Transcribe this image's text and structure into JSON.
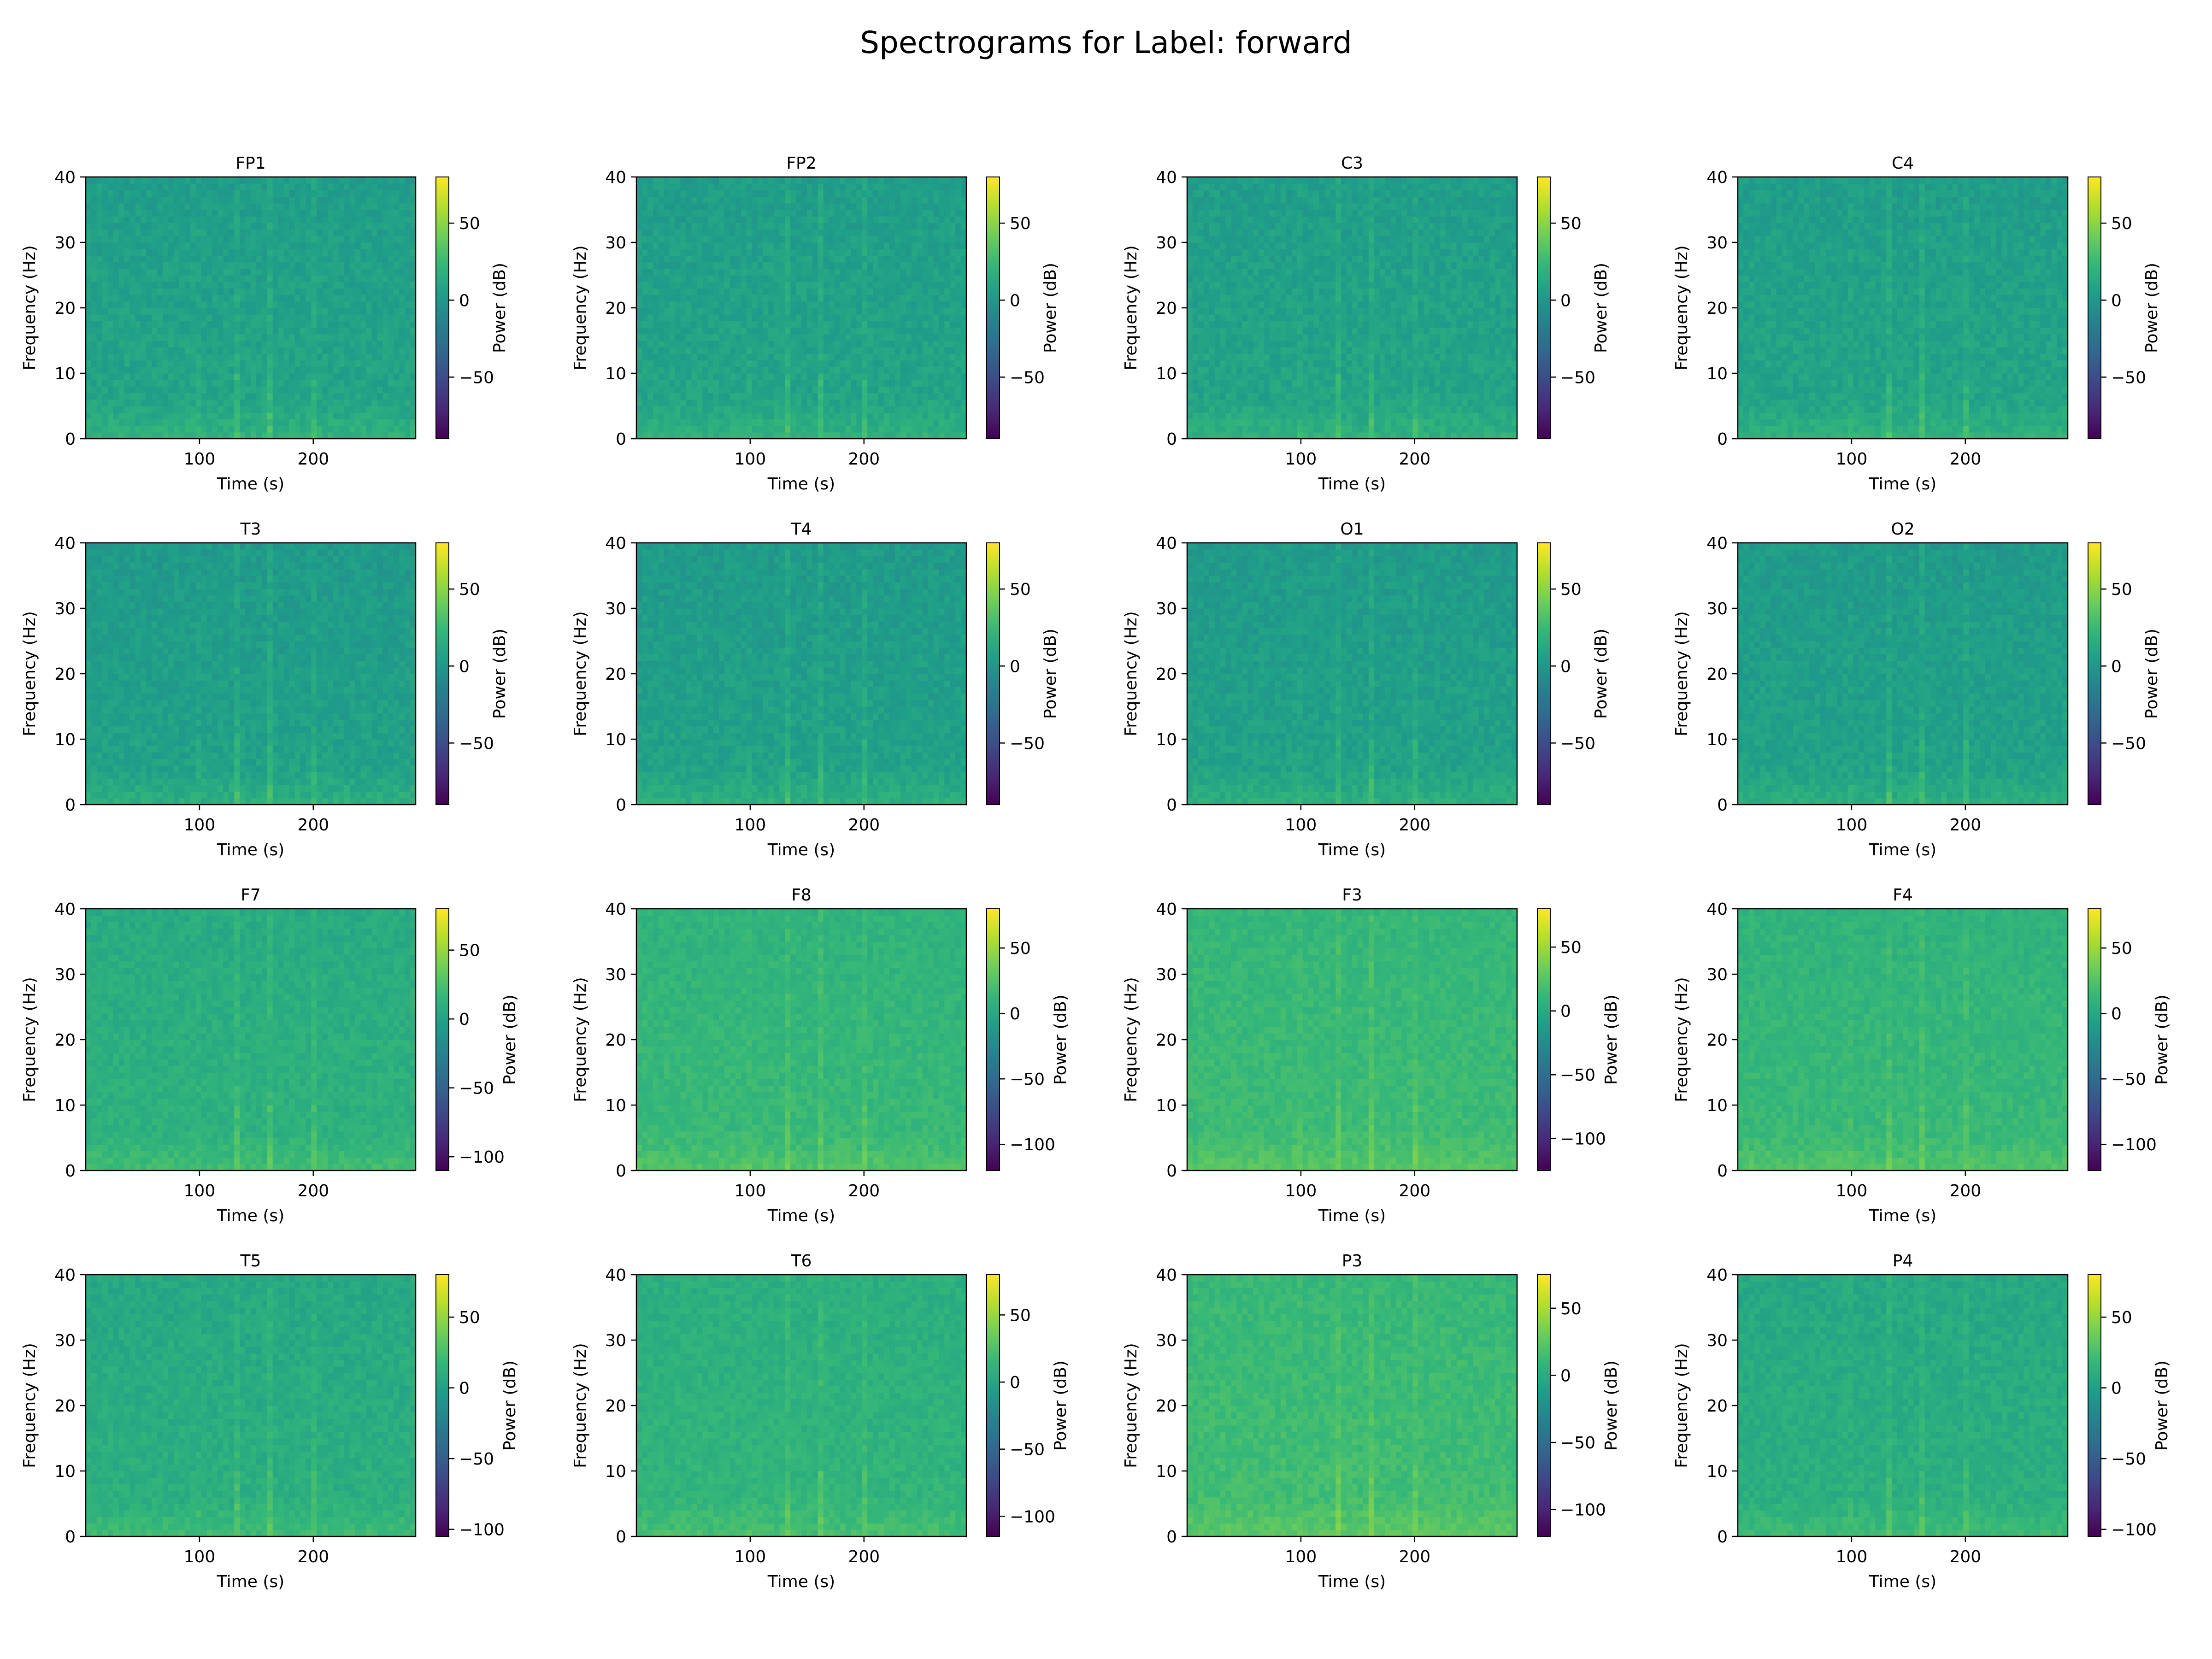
{
  "figure": {
    "title": "Spectrograms for Label: forward"
  },
  "colormap": {
    "name": "viridis",
    "stops": [
      "#440154",
      "#482878",
      "#3e4989",
      "#31688e",
      "#26828e",
      "#1f9e89",
      "#35b779",
      "#6ece58",
      "#b5de2b",
      "#fde725"
    ]
  },
  "chart_data": [
    {
      "type": "heatmap",
      "title": "FP1",
      "xlabel": "Time (s)",
      "ylabel": "Frequency (Hz)",
      "xticks": [
        100,
        200
      ],
      "xlim": [
        0,
        290
      ],
      "yticks": [
        0,
        10,
        20,
        30,
        40
      ],
      "ylim": [
        0,
        40
      ],
      "colorbar": {
        "label": "Power (dB)",
        "ticks": [
          -50,
          0,
          50
        ],
        "range": [
          -90,
          80
        ]
      },
      "base_level_db": 10,
      "vertical_streaks_s": [
        97,
        133,
        163,
        200
      ]
    },
    {
      "type": "heatmap",
      "title": "FP2",
      "xlabel": "Time (s)",
      "ylabel": "Frequency (Hz)",
      "xticks": [
        100,
        200
      ],
      "xlim": [
        0,
        290
      ],
      "yticks": [
        0,
        10,
        20,
        30,
        40
      ],
      "ylim": [
        0,
        40
      ],
      "colorbar": {
        "label": "Power (dB)",
        "ticks": [
          -50,
          0,
          50
        ],
        "range": [
          -90,
          80
        ]
      },
      "base_level_db": 10,
      "vertical_streaks_s": [
        97,
        133,
        163,
        200
      ]
    },
    {
      "type": "heatmap",
      "title": "C3",
      "xlabel": "Time (s)",
      "ylabel": "Frequency (Hz)",
      "xticks": [
        100,
        200
      ],
      "xlim": [
        0,
        290
      ],
      "yticks": [
        0,
        10,
        20,
        30,
        40
      ],
      "ylim": [
        0,
        40
      ],
      "colorbar": {
        "label": "Power (dB)",
        "ticks": [
          -50,
          0,
          50
        ],
        "range": [
          -90,
          80
        ]
      },
      "base_level_db": 10,
      "vertical_streaks_s": [
        97,
        133,
        163,
        200
      ]
    },
    {
      "type": "heatmap",
      "title": "C4",
      "xlabel": "Time (s)",
      "ylabel": "Frequency (Hz)",
      "xticks": [
        100,
        200
      ],
      "xlim": [
        0,
        290
      ],
      "yticks": [
        0,
        10,
        20,
        30,
        40
      ],
      "ylim": [
        0,
        40
      ],
      "colorbar": {
        "label": "Power (dB)",
        "ticks": [
          -50,
          0,
          50
        ],
        "range": [
          -90,
          80
        ]
      },
      "base_level_db": 10,
      "vertical_streaks_s": [
        97,
        133,
        163,
        200
      ]
    },
    {
      "type": "heatmap",
      "title": "T3",
      "xlabel": "Time (s)",
      "ylabel": "Frequency (Hz)",
      "xticks": [
        100,
        200
      ],
      "xlim": [
        0,
        290
      ],
      "yticks": [
        0,
        10,
        20,
        30,
        40
      ],
      "ylim": [
        0,
        40
      ],
      "colorbar": {
        "label": "Power (dB)",
        "ticks": [
          -50,
          0,
          50
        ],
        "range": [
          -90,
          80
        ]
      },
      "base_level_db": 8,
      "vertical_streaks_s": [
        97,
        133,
        163,
        200
      ]
    },
    {
      "type": "heatmap",
      "title": "T4",
      "xlabel": "Time (s)",
      "ylabel": "Frequency (Hz)",
      "xticks": [
        100,
        200
      ],
      "xlim": [
        0,
        290
      ],
      "yticks": [
        0,
        10,
        20,
        30,
        40
      ],
      "ylim": [
        0,
        40
      ],
      "colorbar": {
        "label": "Power (dB)",
        "ticks": [
          -50,
          0,
          50
        ],
        "range": [
          -90,
          80
        ]
      },
      "base_level_db": 8,
      "vertical_streaks_s": [
        97,
        133,
        163,
        200
      ]
    },
    {
      "type": "heatmap",
      "title": "O1",
      "xlabel": "Time (s)",
      "ylabel": "Frequency (Hz)",
      "xticks": [
        100,
        200
      ],
      "xlim": [
        0,
        290
      ],
      "yticks": [
        0,
        10,
        20,
        30,
        40
      ],
      "ylim": [
        0,
        40
      ],
      "colorbar": {
        "label": "Power (dB)",
        "ticks": [
          -50,
          0,
          50
        ],
        "range": [
          -90,
          80
        ]
      },
      "base_level_db": 8,
      "vertical_streaks_s": [
        97,
        133,
        163,
        200
      ]
    },
    {
      "type": "heatmap",
      "title": "O2",
      "xlabel": "Time (s)",
      "ylabel": "Frequency (Hz)",
      "xticks": [
        100,
        200
      ],
      "xlim": [
        0,
        290
      ],
      "yticks": [
        0,
        10,
        20,
        30,
        40
      ],
      "ylim": [
        0,
        40
      ],
      "colorbar": {
        "label": "Power (dB)",
        "ticks": [
          -50,
          0,
          50
        ],
        "range": [
          -90,
          80
        ]
      },
      "base_level_db": 8,
      "vertical_streaks_s": [
        97,
        133,
        163,
        200
      ]
    },
    {
      "type": "heatmap",
      "title": "F7",
      "xlabel": "Time (s)",
      "ylabel": "Frequency (Hz)",
      "xticks": [
        100,
        200
      ],
      "xlim": [
        0,
        290
      ],
      "yticks": [
        0,
        10,
        20,
        30,
        40
      ],
      "ylim": [
        0,
        40
      ],
      "colorbar": {
        "label": "Power (dB)",
        "ticks": [
          -100,
          -50,
          0,
          50
        ],
        "range": [
          -110,
          80
        ]
      },
      "base_level_db": 12,
      "vertical_streaks_s": [
        97,
        133,
        163,
        200
      ]
    },
    {
      "type": "heatmap",
      "title": "F8",
      "xlabel": "Time (s)",
      "ylabel": "Frequency (Hz)",
      "xticks": [
        100,
        200
      ],
      "xlim": [
        0,
        290
      ],
      "yticks": [
        0,
        10,
        20,
        30,
        40
      ],
      "ylim": [
        0,
        40
      ],
      "colorbar": {
        "label": "Power (dB)",
        "ticks": [
          -100,
          -50,
          0,
          50
        ],
        "range": [
          -120,
          80
        ]
      },
      "base_level_db": 15,
      "vertical_streaks_s": [
        97,
        133,
        163,
        200
      ]
    },
    {
      "type": "heatmap",
      "title": "F3",
      "xlabel": "Time (s)",
      "ylabel": "Frequency (Hz)",
      "xticks": [
        100,
        200
      ],
      "xlim": [
        0,
        290
      ],
      "yticks": [
        0,
        10,
        20,
        30,
        40
      ],
      "ylim": [
        0,
        40
      ],
      "colorbar": {
        "label": "Power (dB)",
        "ticks": [
          -100,
          -50,
          0,
          50
        ],
        "range": [
          -125,
          80
        ]
      },
      "base_level_db": 16,
      "vertical_streaks_s": [
        97,
        133,
        163,
        200
      ]
    },
    {
      "type": "heatmap",
      "title": "F4",
      "xlabel": "Time (s)",
      "ylabel": "Frequency (Hz)",
      "xticks": [
        100,
        200
      ],
      "xlim": [
        0,
        290
      ],
      "yticks": [
        0,
        10,
        20,
        30,
        40
      ],
      "ylim": [
        0,
        40
      ],
      "colorbar": {
        "label": "Power (dB)",
        "ticks": [
          -100,
          -50,
          0,
          50
        ],
        "range": [
          -120,
          80
        ]
      },
      "base_level_db": 15,
      "vertical_streaks_s": [
        97,
        133,
        163,
        200
      ]
    },
    {
      "type": "heatmap",
      "title": "T5",
      "xlabel": "Time (s)",
      "ylabel": "Frequency (Hz)",
      "xticks": [
        100,
        200
      ],
      "xlim": [
        0,
        290
      ],
      "yticks": [
        0,
        10,
        20,
        30,
        40
      ],
      "ylim": [
        0,
        40
      ],
      "colorbar": {
        "label": "Power (dB)",
        "ticks": [
          -100,
          -50,
          0,
          50
        ],
        "range": [
          -105,
          80
        ]
      },
      "base_level_db": 12,
      "vertical_streaks_s": [
        97,
        133,
        163,
        200
      ]
    },
    {
      "type": "heatmap",
      "title": "T6",
      "xlabel": "Time (s)",
      "ylabel": "Frequency (Hz)",
      "xticks": [
        100,
        200
      ],
      "xlim": [
        0,
        290
      ],
      "yticks": [
        0,
        10,
        20,
        30,
        40
      ],
      "ylim": [
        0,
        40
      ],
      "colorbar": {
        "label": "Power (dB)",
        "ticks": [
          -100,
          -50,
          0,
          50
        ],
        "range": [
          -115,
          80
        ]
      },
      "base_level_db": 13,
      "vertical_streaks_s": [
        97,
        133,
        163,
        200
      ]
    },
    {
      "type": "heatmap",
      "title": "P3",
      "xlabel": "Time (s)",
      "ylabel": "Frequency (Hz)",
      "xticks": [
        100,
        200
      ],
      "xlim": [
        0,
        290
      ],
      "yticks": [
        0,
        10,
        20,
        30,
        40
      ],
      "ylim": [
        0,
        40
      ],
      "colorbar": {
        "label": "Power (dB)",
        "ticks": [
          -100,
          -50,
          0,
          50
        ],
        "range": [
          -120,
          75
        ]
      },
      "base_level_db": 16,
      "vertical_streaks_s": [
        97,
        133,
        163,
        200
      ]
    },
    {
      "type": "heatmap",
      "title": "P4",
      "xlabel": "Time (s)",
      "ylabel": "Frequency (Hz)",
      "xticks": [
        100,
        200
      ],
      "xlim": [
        0,
        290
      ],
      "yticks": [
        0,
        10,
        20,
        30,
        40
      ],
      "ylim": [
        0,
        40
      ],
      "colorbar": {
        "label": "Power (dB)",
        "ticks": [
          -100,
          -50,
          0,
          50
        ],
        "range": [
          -105,
          80
        ]
      },
      "base_level_db": 12,
      "vertical_streaks_s": [
        97,
        133,
        163,
        200
      ]
    }
  ]
}
